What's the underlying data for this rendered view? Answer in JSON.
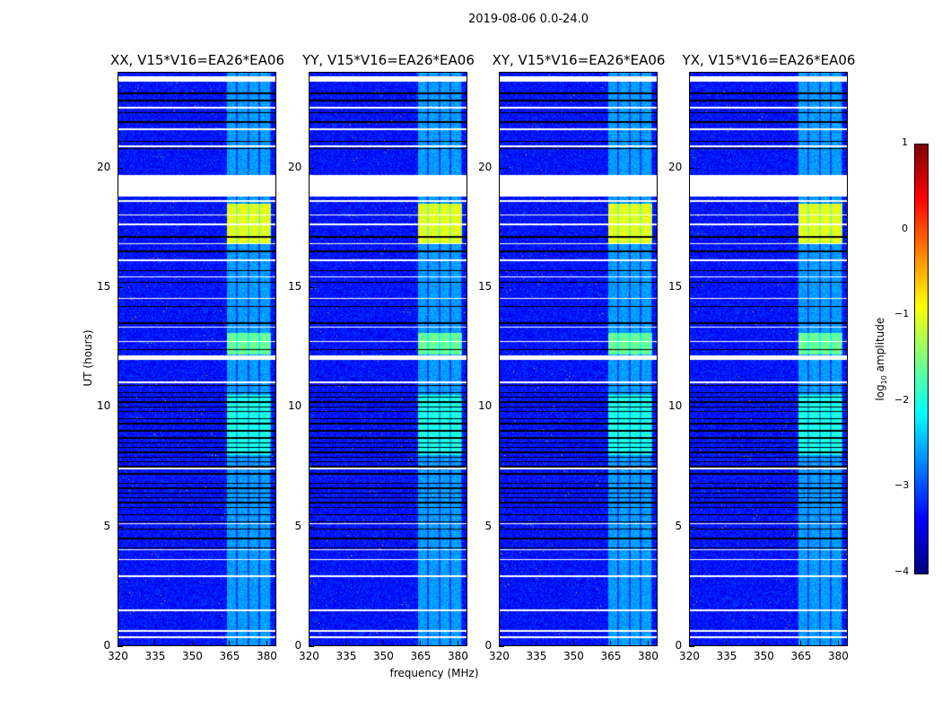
{
  "suptitle": "2019-08-06 0.0-24.0",
  "chart_data": {
    "type": "heatmap",
    "xlabel": "frequency (MHz)",
    "ylabel": "UT (hours)",
    "xlim": [
      320,
      384
    ],
    "ylim": [
      0,
      24
    ],
    "xticks": [
      "320",
      "335",
      "350",
      "365",
      "380"
    ],
    "yticks": [
      "0",
      "5",
      "10",
      "15",
      "20"
    ],
    "panels": [
      {
        "title": "XX, V15*V16=EA26*EA06"
      },
      {
        "title": "YY, V15*V16=EA26*EA06"
      },
      {
        "title": "XY, V15*V16=EA26*EA06"
      },
      {
        "title": "YX, V15*V16=EA26*EA06"
      }
    ],
    "colorbar": {
      "label_prefix": "log",
      "label_sub": "10",
      "label_suffix": " amplitude",
      "range": [
        -4,
        1
      ],
      "ticks": [
        "1",
        "0",
        "−1",
        "−2",
        "−3",
        "−4"
      ],
      "colormap": "jet"
    },
    "background_level": -3.3,
    "rfi_features": [
      {
        "fmin": 364,
        "fmax": 382,
        "tmin": 0,
        "tmax": 24,
        "level": -2.6
      },
      {
        "fmin": 364,
        "fmax": 382,
        "tmin": 16.8,
        "tmax": 18.5,
        "level": -1.0
      },
      {
        "fmin": 364,
        "fmax": 382,
        "tmin": 12.2,
        "tmax": 13.1,
        "level": -1.6
      },
      {
        "fmin": 364,
        "fmax": 382,
        "tmin": 8.0,
        "tmax": 10.5,
        "level": -2.0
      }
    ],
    "flagged_intervals_hours": [
      [
        23.6,
        23.8
      ],
      [
        18.8,
        19.7
      ],
      [
        11.95,
        12.15
      ],
      [
        22.45,
        22.52
      ],
      [
        21.55,
        21.62
      ],
      [
        20.85,
        20.92
      ],
      [
        18.55,
        18.62
      ],
      [
        18.0,
        18.05
      ],
      [
        17.6,
        17.65
      ],
      [
        16.8,
        16.85
      ],
      [
        16.1,
        16.16
      ],
      [
        15.4,
        15.46
      ],
      [
        14.5,
        14.55
      ],
      [
        13.3,
        13.35
      ],
      [
        12.7,
        12.75
      ],
      [
        11.0,
        11.05
      ],
      [
        7.4,
        7.46
      ],
      [
        5.1,
        5.15
      ],
      [
        4.0,
        4.06
      ],
      [
        3.6,
        3.65
      ],
      [
        2.9,
        2.95
      ],
      [
        1.45,
        1.52
      ],
      [
        0.6,
        0.67
      ],
      [
        0.35,
        0.4
      ]
    ],
    "zero_rows_hours": [
      23.1,
      22.8,
      22.3,
      21.9,
      21.1,
      20.8,
      17.1,
      16.5,
      15.7,
      15.2,
      14.2,
      13.5,
      12.4,
      10.9,
      10.6,
      10.4,
      10.2,
      10.0,
      9.8,
      9.5,
      9.3,
      9.0,
      8.7,
      8.5,
      8.3,
      8.1,
      7.9,
      7.7,
      7.5,
      7.2,
      6.8,
      6.6,
      6.4,
      6.2,
      6.0,
      5.8,
      5.5,
      5.2,
      4.9,
      4.5,
      4.1
    ]
  }
}
